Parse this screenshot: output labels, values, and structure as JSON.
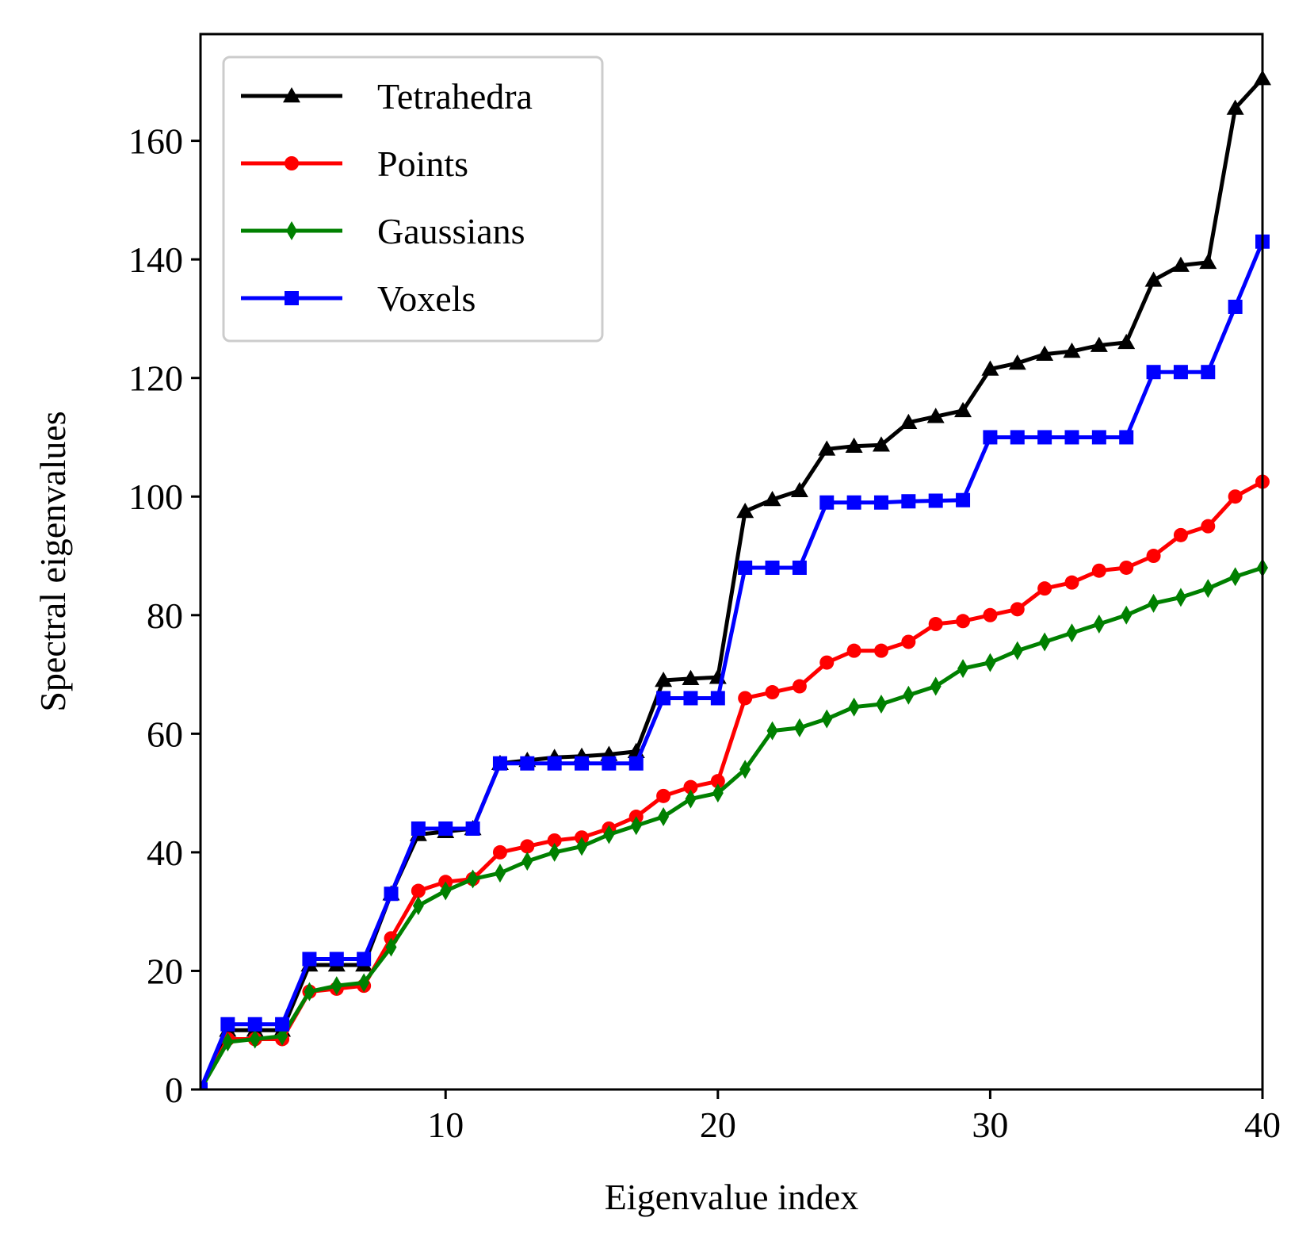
{
  "chart_data": {
    "type": "line",
    "title": "",
    "xlabel": "Eigenvalue index",
    "ylabel": "Spectral eigenvalues",
    "xlim": [
      1,
      40
    ],
    "ylim": [
      0,
      178
    ],
    "xticks": [
      10,
      20,
      30,
      40
    ],
    "yticks": [
      0,
      20,
      40,
      60,
      80,
      100,
      120,
      140,
      160
    ],
    "grid": false,
    "legend_position": "top-left",
    "x": [
      1,
      2,
      3,
      4,
      5,
      6,
      7,
      8,
      9,
      10,
      11,
      12,
      13,
      14,
      15,
      16,
      17,
      18,
      19,
      20,
      21,
      22,
      23,
      24,
      25,
      26,
      27,
      28,
      29,
      30,
      31,
      32,
      33,
      34,
      35,
      36,
      37,
      38,
      39,
      40
    ],
    "series": [
      {
        "name": "Tetrahedra",
        "color": "#000000",
        "marker": "triangle",
        "values": [
          0,
          10,
          10,
          10,
          21,
          21,
          21,
          33,
          43,
          43.5,
          44,
          55,
          55.5,
          56,
          56.2,
          56.5,
          57,
          69,
          69.3,
          69.5,
          97.5,
          99.5,
          101,
          108,
          108.5,
          108.7,
          112.5,
          113.5,
          114.5,
          121.5,
          122.5,
          124,
          124.5,
          125.5,
          126,
          136.5,
          139,
          139.5,
          165.5,
          170.5
        ]
      },
      {
        "name": "Points",
        "color": "#ff0000",
        "marker": "circle",
        "values": [
          0,
          8.5,
          8.5,
          8.5,
          16.5,
          17,
          17.5,
          25.5,
          33.5,
          35,
          35.5,
          40,
          41,
          42,
          42.5,
          44,
          46,
          49.5,
          51,
          52,
          66,
          67,
          68,
          72,
          74,
          74,
          75.5,
          78.5,
          79,
          80,
          81,
          84.5,
          85.5,
          87.5,
          88,
          90,
          93.5,
          95,
          100,
          102.5
        ]
      },
      {
        "name": "Gaussians",
        "color": "#008000",
        "marker": "thin_diamond",
        "values": [
          0,
          8,
          8.5,
          9,
          16.5,
          17.5,
          18,
          24,
          31,
          33.5,
          35.5,
          36.5,
          38.5,
          40,
          41,
          43,
          44.5,
          46,
          49,
          50,
          54,
          60.5,
          61,
          62.5,
          64.5,
          65,
          66.5,
          68,
          71,
          72,
          74,
          75.5,
          77,
          78.5,
          80,
          82,
          83,
          84.5,
          86.5,
          88
        ]
      },
      {
        "name": "Voxels",
        "color": "#0000ff",
        "marker": "square",
        "values": [
          0,
          11,
          11,
          11,
          22,
          22,
          22,
          33,
          44,
          44,
          44,
          55,
          55,
          55,
          55,
          55,
          55,
          66,
          66,
          66,
          88,
          88,
          88,
          99,
          99,
          99,
          99.2,
          99.3,
          99.4,
          110,
          110,
          110,
          110,
          110,
          110,
          121,
          121,
          121,
          132,
          143
        ]
      }
    ]
  }
}
